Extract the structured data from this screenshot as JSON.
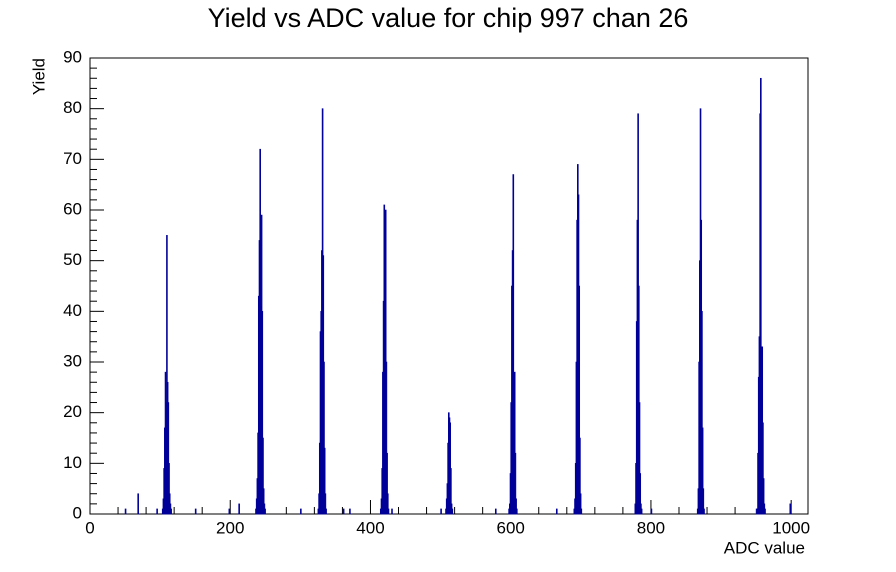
{
  "chart_data": {
    "type": "histogram",
    "title": "Yield vs ADC value for chip 997 chan 26",
    "x_label": "ADC value",
    "y_label": "Yield",
    "color": "#000099",
    "x": [
      50,
      68,
      95,
      103,
      104,
      105,
      106,
      107,
      108,
      109,
      110,
      111,
      112,
      113,
      114,
      115,
      150,
      198,
      212,
      236,
      237,
      238,
      239,
      240,
      241,
      242,
      243,
      244,
      245,
      246,
      247,
      248,
      249,
      300,
      325,
      326,
      327,
      328,
      329,
      330,
      331,
      332,
      333,
      334,
      335,
      336,
      361,
      370,
      414,
      415,
      416,
      417,
      418,
      419,
      420,
      421,
      422,
      423,
      424,
      425,
      430,
      500,
      507,
      508,
      509,
      510,
      511,
      512,
      513,
      514,
      515,
      516,
      578,
      597,
      598,
      599,
      600,
      601,
      602,
      603,
      604,
      605,
      606,
      607,
      608,
      665,
      690,
      691,
      692,
      693,
      694,
      695,
      696,
      697,
      698,
      699,
      700,
      777,
      778,
      779,
      780,
      781,
      782,
      783,
      784,
      785,
      786,
      800,
      866,
      867,
      868,
      869,
      870,
      871,
      872,
      873,
      874,
      875,
      950,
      951,
      952,
      953,
      954,
      955,
      956,
      957,
      958,
      959,
      960,
      961,
      962,
      998
    ],
    "values": [
      1,
      4,
      1,
      1,
      3,
      9,
      17,
      28,
      22,
      55,
      26,
      22,
      10,
      4,
      2,
      1,
      1,
      1,
      2,
      1,
      3,
      7,
      16,
      43,
      54,
      72,
      41,
      59,
      40,
      15,
      5,
      2,
      1,
      1,
      1,
      4,
      14,
      36,
      40,
      52,
      80,
      51,
      30,
      13,
      4,
      1,
      1,
      1,
      1,
      3,
      9,
      28,
      42,
      61,
      50,
      60,
      30,
      12,
      4,
      1,
      1,
      1,
      1,
      3,
      6,
      14,
      20,
      19,
      18,
      9,
      2,
      1,
      1,
      1,
      2,
      8,
      22,
      45,
      52,
      67,
      14,
      28,
      12,
      3,
      1,
      1,
      1,
      3,
      10,
      30,
      58,
      69,
      63,
      45,
      15,
      4,
      1,
      2,
      10,
      38,
      58,
      79,
      45,
      22,
      8,
      2,
      1,
      1,
      1,
      5,
      30,
      50,
      80,
      58,
      40,
      17,
      5,
      1,
      1,
      1,
      12,
      27,
      35,
      79,
      86,
      25,
      33,
      18,
      7,
      2,
      1,
      2
    ],
    "xlim": [
      0,
      1024
    ],
    "ylim": [
      0,
      90
    ],
    "xticks": [
      0,
      200,
      400,
      600,
      800,
      1000
    ],
    "yticks": [
      0,
      10,
      20,
      30,
      40,
      50,
      60,
      70,
      80,
      90
    ]
  }
}
